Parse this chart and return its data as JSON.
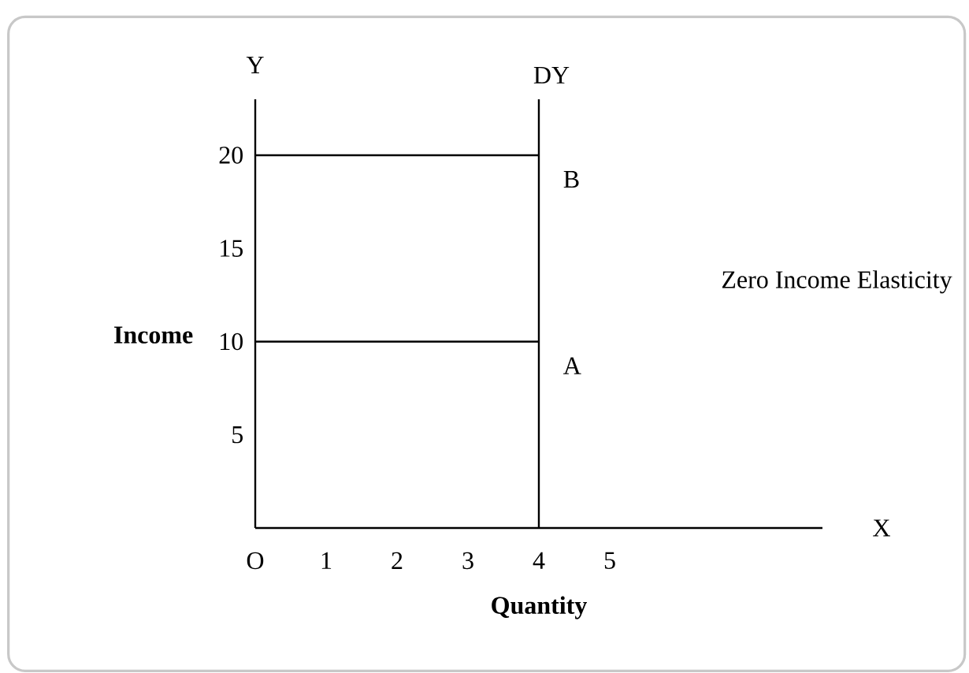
{
  "chart_data": {
    "type": "line",
    "xlabel": "Quantity",
    "ylabel": "Income",
    "xlim": [
      0,
      8
    ],
    "ylim": [
      0,
      23
    ],
    "xticks": [
      {
        "value": 0,
        "label": "O"
      },
      1,
      2,
      3,
      4,
      5
    ],
    "yticks": [
      5,
      10,
      15,
      20
    ],
    "x": [
      0,
      4
    ],
    "series": [
      {
        "color": "#000000",
        "values": [
          20,
          20
        ]
      },
      {
        "color": "#000000",
        "values": [
          10,
          10
        ]
      }
    ],
    "ref_lines": [
      {
        "axis": "x",
        "value": 4,
        "label": "DY",
        "color": "#000000"
      }
    ],
    "annotations": [
      {
        "text": "B",
        "x": 4,
        "y": 20
      },
      {
        "text": "A",
        "x": 4,
        "y": 10
      },
      "Zero Income Elasticity",
      "Y",
      "X"
    ],
    "marker": "none",
    "line_style": "solid"
  }
}
